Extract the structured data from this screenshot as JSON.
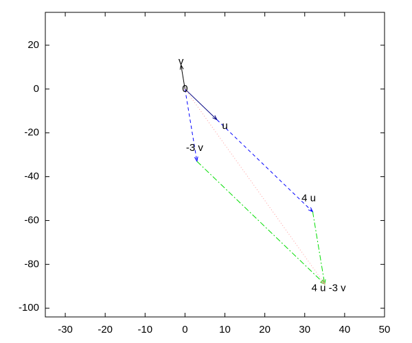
{
  "chart_data": {
    "type": "vector",
    "xlim": [
      -35,
      50
    ],
    "ylim": [
      -104,
      35
    ],
    "xticks": [
      -30,
      -20,
      -10,
      0,
      10,
      20,
      30,
      40,
      50
    ],
    "yticks": [
      -100,
      -80,
      -60,
      -40,
      -20,
      0,
      20
    ],
    "vectors": [
      {
        "x0": 0,
        "y0": 0,
        "x1": 8,
        "y1": -14,
        "color": "#000080",
        "dash": "solid"
      },
      {
        "x0": 0,
        "y0": 0,
        "x1": -1,
        "y1": 11,
        "color": "#000000",
        "dash": "solid"
      },
      {
        "x0": 0,
        "y0": 0,
        "x1": 3,
        "y1": -33,
        "color": "#0000ff",
        "dash": "dashed"
      },
      {
        "x0": 8,
        "y0": -14,
        "x1": 32,
        "y1": -56,
        "color": "#0000ff",
        "dash": "dashed"
      },
      {
        "x0": 3,
        "y0": -33,
        "x1": 35,
        "y1": -89,
        "color": "#00dd00",
        "dash": "dashdot"
      },
      {
        "x0": 32,
        "y0": -56,
        "x1": 35,
        "y1": -89,
        "color": "#00dd00",
        "dash": "dashdot"
      },
      {
        "x0": 0,
        "y0": 0,
        "x1": 35,
        "y1": -89,
        "color": "#ff9999",
        "dash": "dotted"
      }
    ],
    "labels": [
      {
        "text": "v",
        "x": -1,
        "y": 12.5
      },
      {
        "text": "0",
        "x": 0,
        "y": 0
      },
      {
        "text": "u",
        "x": 10,
        "y": -17
      },
      {
        "text": "-3 v",
        "x": 2.4,
        "y": -27
      },
      {
        "text": "4 u",
        "x": 31,
        "y": -50
      },
      {
        "text": "4 u -3 v",
        "x": 36,
        "y": -91
      }
    ]
  }
}
